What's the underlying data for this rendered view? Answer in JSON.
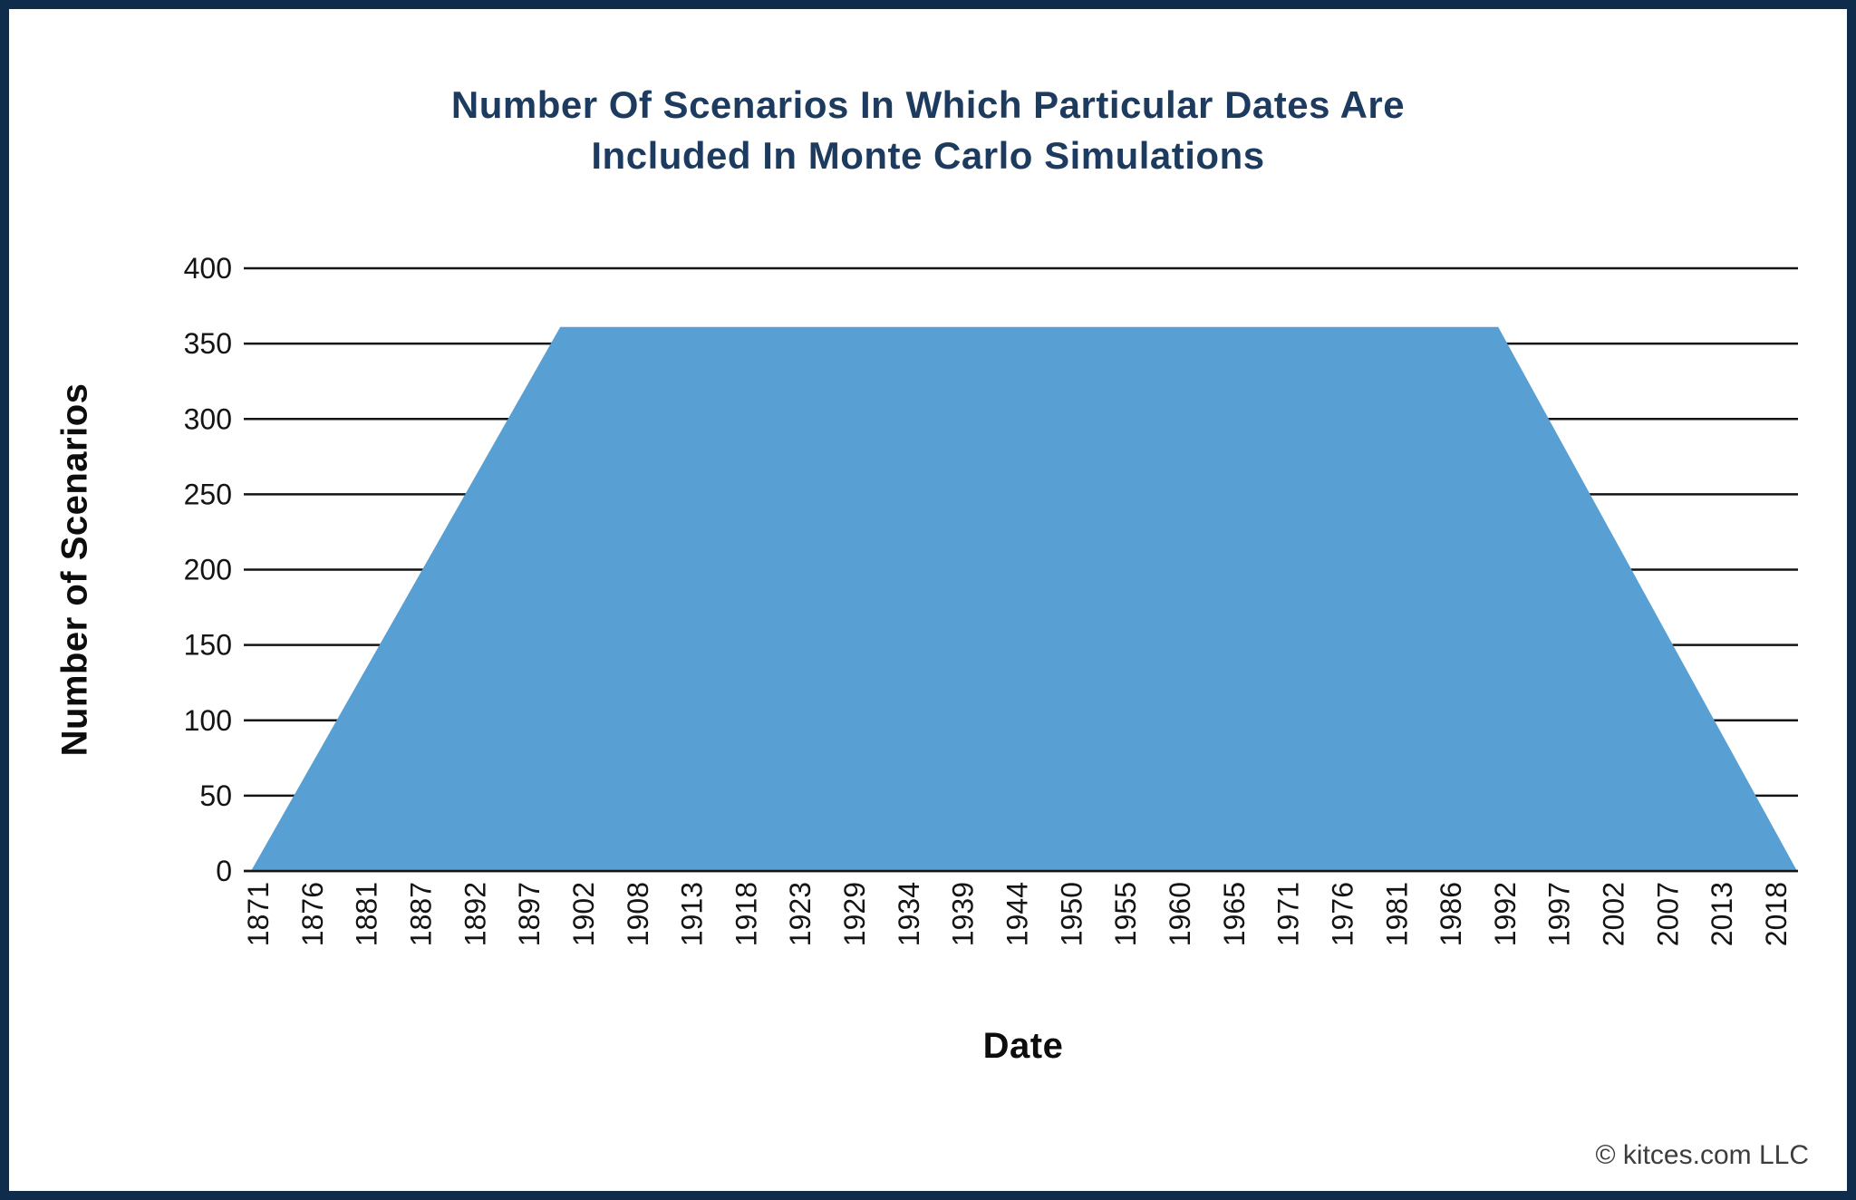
{
  "title": "Number Of Scenarios In Which Particular Dates Are\nIncluded In Monte Carlo Simulations",
  "footer": {
    "copyright": "© kitces.com LLC"
  },
  "colors": {
    "frame_border": "#102c4c",
    "title_text": "#1d3b5f",
    "area_fill": "#58a0d3",
    "gridline": "#141414",
    "tick_text": "#141414"
  },
  "chart_data": {
    "type": "area",
    "title": "Number Of Scenarios In Which Particular Dates Are Included In Monte Carlo Simulations",
    "xlabel": "Date",
    "ylabel": "Number of Scenarios",
    "ylim": [
      0,
      400
    ],
    "y_ticks": [
      400,
      350,
      300,
      250,
      200,
      150,
      100,
      50,
      0
    ],
    "x_tick_labels": [
      "1871",
      "1876",
      "1881",
      "1887",
      "1892",
      "1897",
      "1902",
      "1908",
      "1913",
      "1918",
      "1923",
      "1929",
      "1934",
      "1939",
      "1944",
      "1950",
      "1955",
      "1960",
      "1965",
      "1971",
      "1976",
      "1981",
      "1986",
      "1992",
      "1997",
      "2002",
      "2007",
      "2013",
      "2018"
    ],
    "x_range_years": [
      1871,
      2021
    ],
    "plateau_value": 361,
    "points": [
      {
        "year": 1871,
        "scenarios": 0
      },
      {
        "year": 1901,
        "scenarios": 361
      },
      {
        "year": 1992,
        "scenarios": 361
      },
      {
        "year": 2021,
        "scenarios": 0
      }
    ],
    "grid": true,
    "legend": false,
    "area_color": "#58a0d3"
  }
}
